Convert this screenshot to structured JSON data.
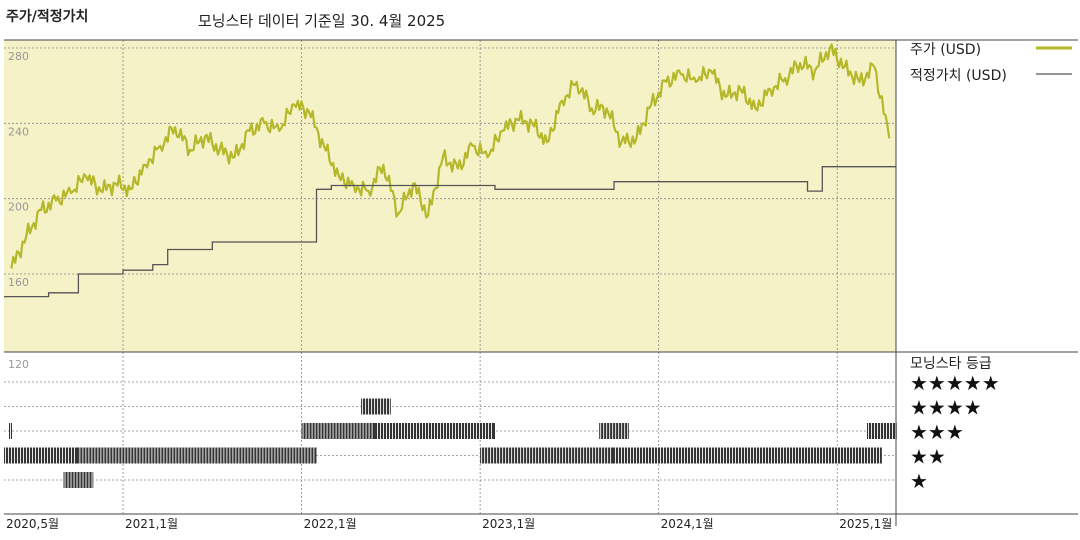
{
  "header": {
    "title": "주가/적정가치",
    "subtitle": "모닝스타 데이터 기준일 30. 4월 2025"
  },
  "colors": {
    "price_line": "#b5b82a",
    "fair_value_line": "#555555",
    "upper_bg": "#f6f2c8",
    "grid": "#888888",
    "rating_bar": "#333333"
  },
  "legend": {
    "price_label": "주가 (USD)",
    "fair_value_label": "적정가치 (USD)",
    "rating_title": "모닝스타 등급",
    "stars": [
      "★★★★★",
      "★★★★",
      "★★★",
      "★★",
      "★"
    ]
  },
  "chart_data": {
    "type": "line",
    "x_start": "2020-05",
    "x_end": "2025-04",
    "x_ticks": [
      "2020,5월",
      "2021,1월",
      "2022,1월",
      "2023,1월",
      "2024,1월",
      "2025,1월"
    ],
    "y_ticks": [
      "280",
      "240",
      "200",
      "160",
      "120"
    ],
    "ylim": [
      120,
      280
    ],
    "grid": true,
    "legend_position": "right",
    "series": [
      {
        "name": "주가 (USD)",
        "x": [
          "2020-05",
          "2020-06",
          "2020-07",
          "2020-08",
          "2020-09",
          "2020-10",
          "2020-11",
          "2020-12",
          "2021-01",
          "2021-02",
          "2021-03",
          "2021-04",
          "2021-05",
          "2021-06",
          "2021-07",
          "2021-08",
          "2021-09",
          "2021-10",
          "2021-11",
          "2021-12",
          "2022-01",
          "2022-02",
          "2022-03",
          "2022-04",
          "2022-05",
          "2022-06",
          "2022-07",
          "2022-08",
          "2022-09",
          "2022-10",
          "2022-11",
          "2022-12",
          "2023-01",
          "2023-02",
          "2023-03",
          "2023-04",
          "2023-05",
          "2023-06",
          "2023-07",
          "2023-08",
          "2023-09",
          "2023-10",
          "2023-11",
          "2023-12",
          "2024-01",
          "2024-02",
          "2024-03",
          "2024-04",
          "2024-05",
          "2024-06",
          "2024-07",
          "2024-08",
          "2024-09",
          "2024-10",
          "2024-11",
          "2024-12",
          "2025-01",
          "2025-02",
          "2025-03",
          "2025-04"
        ],
        "values": [
          163,
          180,
          194,
          199,
          203,
          212,
          204,
          208,
          205,
          218,
          228,
          238,
          226,
          233,
          226,
          222,
          236,
          240,
          236,
          250,
          246,
          228,
          212,
          207,
          204,
          218,
          192,
          208,
          191,
          222,
          216,
          228,
          222,
          236,
          242,
          240,
          230,
          252,
          262,
          248,
          248,
          230,
          232,
          250,
          262,
          266,
          262,
          268,
          254,
          258,
          248,
          258,
          264,
          272,
          268,
          280,
          270,
          262,
          270,
          232
        ]
      },
      {
        "name": "적정가치 (USD)",
        "x": [
          "2020-05",
          "2020-08",
          "2020-10",
          "2021-01",
          "2021-03",
          "2021-04",
          "2021-07",
          "2021-09",
          "2021-10",
          "2022-02",
          "2022-03",
          "2023-01",
          "2023-02",
          "2023-08",
          "2023-10",
          "2024-01",
          "2024-07",
          "2024-11",
          "2024-12",
          "2025-04"
        ],
        "values": [
          148,
          150,
          160,
          162,
          165,
          173,
          177,
          177,
          177,
          205,
          207,
          207,
          205,
          205,
          209,
          209,
          209,
          204,
          217,
          217
        ]
      }
    ],
    "ratings": [
      {
        "stars": 3,
        "from": "2020-05",
        "to": "2020-05"
      },
      {
        "stars": 2,
        "from": "2020-05",
        "to": "2020-09"
      },
      {
        "stars": 1,
        "from": "2020-09",
        "to": "2020-10"
      },
      {
        "stars": 2,
        "from": "2020-10",
        "to": "2022-01"
      },
      {
        "stars": 3,
        "from": "2022-01",
        "to": "2022-05"
      },
      {
        "stars": 4,
        "from": "2022-05",
        "to": "2022-06"
      },
      {
        "stars": 3,
        "from": "2022-06",
        "to": "2023-01"
      },
      {
        "stars": 2,
        "from": "2023-01",
        "to": "2023-09"
      },
      {
        "stars": 3,
        "from": "2023-09",
        "to": "2023-10"
      },
      {
        "stars": 2,
        "from": "2023-10",
        "to": "2025-03"
      },
      {
        "stars": 3,
        "from": "2025-03",
        "to": "2025-04"
      }
    ]
  }
}
